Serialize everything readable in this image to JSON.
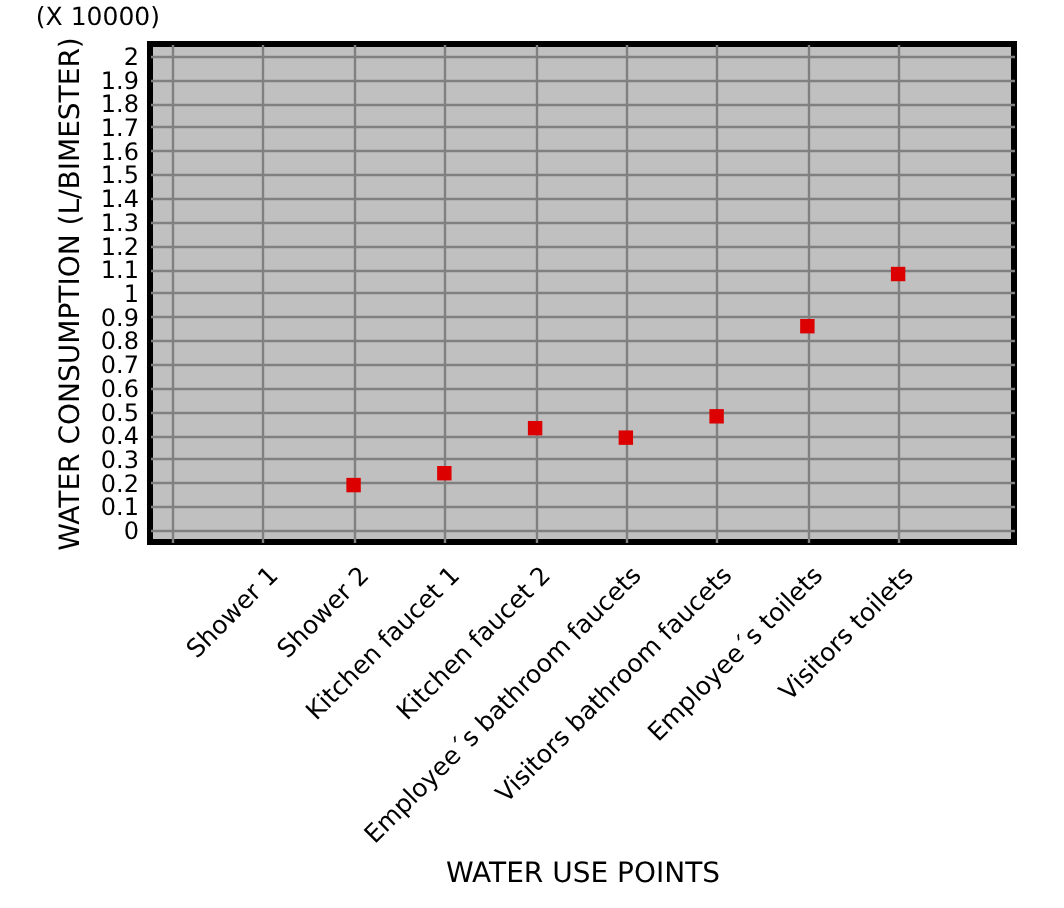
{
  "chart_data": {
    "type": "scatter",
    "xlabel": "WATER USE POINTS",
    "ylabel": "WATER CONSUMPTION (L/BIMESTER)",
    "annotations": [
      "(X 10000)"
    ],
    "categories": [
      null,
      "Shower 1",
      "Shower 2",
      "Kitchen faucet 1",
      "Kitchen faucet 2",
      "Employee´s bathroom faucets",
      "Visitors bathroom faucets",
      "Employee´s toilets",
      "Visitors toilets"
    ],
    "values": [
      null,
      null,
      0.19,
      0.24,
      0.43,
      0.39,
      0.48,
      0.86,
      1.08
    ],
    "color": "#dd0000",
    "marker": "square",
    "ylim": [
      -0.05,
      2.05
    ],
    "yticks": [
      0,
      0.1,
      0.2,
      0.3,
      0.4,
      0.5,
      0.6,
      0.7,
      0.8,
      0.9,
      1,
      1.1,
      1.2,
      1.3,
      1.4,
      1.5,
      1.6,
      1.7,
      1.8,
      1.9,
      2
    ],
    "grid": true
  }
}
